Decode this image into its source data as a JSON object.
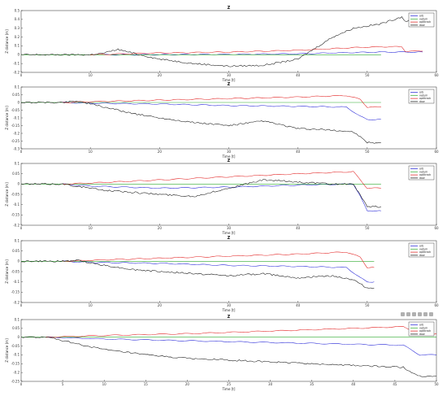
{
  "chart_data": [
    {
      "type": "line",
      "title": "Z",
      "xlabel": "Time [t]",
      "ylabel": "Z distance [m]",
      "xlim": [
        0,
        60
      ],
      "ylim": [
        -0.2,
        0.5
      ],
      "xticks": [
        0,
        10,
        20,
        30,
        40,
        50,
        60
      ],
      "yticks": [
        -0.2,
        -0.1,
        0,
        0.1,
        0.2,
        0.3,
        0.4,
        0.5
      ],
      "grid": false,
      "legend": "top-right",
      "legend_entries": [
        "orb",
        "vatum",
        "optitrack",
        "daw"
      ],
      "colors": [
        "#1f1fd6",
        "#2eaa2e",
        "#e11919",
        "#111111"
      ],
      "series": [
        {
          "name": "orb",
          "x": [
            12,
            20,
            30,
            40,
            45,
            48,
            52,
            55,
            55.5,
            58
          ],
          "y": [
            0,
            0,
            0.005,
            0.01,
            0.02,
            0.025,
            0.03,
            0.03,
            0.03,
            0.03
          ]
        },
        {
          "name": "vatum",
          "x": [
            0,
            52
          ],
          "y": [
            0,
            0
          ]
        },
        {
          "name": "optitrack",
          "x": [
            10,
            20,
            30,
            40,
            48,
            52,
            55,
            55.5,
            58
          ],
          "y": [
            0,
            0.02,
            0.03,
            0.05,
            0.08,
            0.09,
            0.09,
            0.04,
            0.04
          ]
        },
        {
          "name": "daw",
          "x": [
            0,
            10,
            12,
            14,
            16,
            20,
            25,
            30,
            35,
            40,
            45,
            48,
            52,
            55,
            55.5,
            58
          ],
          "y": [
            0,
            0,
            0.02,
            0.06,
            0.02,
            -0.05,
            -0.1,
            -0.13,
            -0.12,
            -0.05,
            0.2,
            0.3,
            0.35,
            0.43,
            0.38,
            0.39
          ]
        }
      ]
    },
    {
      "type": "line",
      "title": "Z",
      "xlabel": "Time [t]",
      "ylabel": "Z distance [m]",
      "xlim": [
        0,
        60
      ],
      "ylim": [
        -0.3,
        0.1
      ],
      "xticks": [
        0,
        10,
        20,
        30,
        40,
        50,
        60
      ],
      "yticks": [
        -0.3,
        -0.25,
        -0.2,
        -0.15,
        -0.1,
        -0.05,
        0,
        0.05,
        0.1
      ],
      "grid": false,
      "legend": "top-right",
      "legend_entries": [
        "orb",
        "vatum",
        "optitrack",
        "daw"
      ],
      "colors": [
        "#1f1fd6",
        "#2eaa2e",
        "#e11919",
        "#111111"
      ],
      "series": [
        {
          "name": "orb",
          "x": [
            6,
            10,
            20,
            30,
            40,
            47,
            49,
            50,
            52
          ],
          "y": [
            0,
            -0.005,
            -0.01,
            -0.02,
            -0.025,
            -0.03,
            -0.09,
            -0.11,
            -0.11
          ]
        },
        {
          "name": "vatum",
          "x": [
            0,
            52
          ],
          "y": [
            0,
            0
          ]
        },
        {
          "name": "optitrack",
          "x": [
            6,
            10,
            20,
            30,
            40,
            47,
            49,
            50,
            52
          ],
          "y": [
            0,
            0.005,
            0.015,
            0.025,
            0.035,
            0.045,
            0.02,
            -0.03,
            -0.03
          ]
        },
        {
          "name": "daw",
          "x": [
            0,
            6,
            8,
            12,
            16,
            20,
            25,
            30,
            35,
            40,
            45,
            48,
            50,
            52
          ],
          "y": [
            0,
            0,
            0.01,
            -0.03,
            -0.07,
            -0.1,
            -0.13,
            -0.15,
            -0.12,
            -0.17,
            -0.18,
            -0.19,
            -0.26,
            -0.26
          ]
        }
      ]
    },
    {
      "type": "line",
      "title": "Z",
      "xlabel": "Time [t]",
      "ylabel": "Z distance [m]",
      "xlim": [
        0,
        60
      ],
      "ylim": [
        -0.2,
        0.1
      ],
      "xticks": [
        0,
        10,
        20,
        30,
        40,
        50,
        60
      ],
      "yticks": [
        -0.2,
        -0.15,
        -0.1,
        -0.05,
        0,
        0.05,
        0.1
      ],
      "grid": false,
      "legend": "top-right",
      "legend_entries": [
        "orb",
        "vatum",
        "optitrack",
        "daw"
      ],
      "colors": [
        "#1f1fd6",
        "#2eaa2e",
        "#e11919",
        "#111111"
      ],
      "series": [
        {
          "name": "orb",
          "x": [
            6,
            10,
            20,
            30,
            40,
            48,
            49,
            50,
            52
          ],
          "y": [
            0,
            -0.01,
            -0.02,
            -0.015,
            -0.005,
            0,
            -0.06,
            -0.13,
            -0.13
          ]
        },
        {
          "name": "vatum",
          "x": [
            0,
            52
          ],
          "y": [
            0,
            0
          ]
        },
        {
          "name": "optitrack",
          "x": [
            6,
            10,
            20,
            30,
            40,
            48,
            49,
            50,
            52
          ],
          "y": [
            0,
            0.005,
            0.02,
            0.035,
            0.05,
            0.06,
            0.02,
            -0.02,
            -0.02
          ]
        },
        {
          "name": "daw",
          "x": [
            0,
            6,
            8,
            12,
            16,
            20,
            25,
            30,
            35,
            40,
            45,
            48,
            50,
            52
          ],
          "y": [
            0,
            0,
            -0.01,
            -0.03,
            -0.04,
            -0.05,
            -0.06,
            -0.02,
            0.02,
            0.01,
            0.0,
            0.0,
            -0.11,
            -0.11
          ]
        }
      ]
    },
    {
      "type": "line",
      "title": "Z",
      "xlabel": "Time [t]",
      "ylabel": "Z distance [m]",
      "xlim": [
        0,
        60
      ],
      "ylim": [
        -0.2,
        0.1
      ],
      "xticks": [
        0,
        10,
        20,
        30,
        40,
        50,
        60
      ],
      "yticks": [
        -0.2,
        -0.15,
        -0.1,
        -0.05,
        0,
        0.05,
        0.1
      ],
      "grid": false,
      "legend": "top-right",
      "legend_entries": [
        "orb",
        "vatum",
        "optitrack",
        "daw"
      ],
      "colors": [
        "#1f1fd6",
        "#2eaa2e",
        "#e11919",
        "#111111"
      ],
      "series": [
        {
          "name": "orb",
          "x": [
            6,
            10,
            20,
            30,
            40,
            47,
            49,
            50,
            51
          ],
          "y": [
            0,
            -0.005,
            -0.01,
            -0.02,
            -0.025,
            -0.03,
            -0.08,
            -0.1,
            -0.1
          ]
        },
        {
          "name": "vatum",
          "x": [
            0,
            51
          ],
          "y": [
            0,
            0
          ]
        },
        {
          "name": "optitrack",
          "x": [
            6,
            10,
            20,
            30,
            40,
            47,
            49,
            50,
            51
          ],
          "y": [
            0,
            0.005,
            0.015,
            0.025,
            0.035,
            0.045,
            0.02,
            -0.03,
            -0.03
          ]
        },
        {
          "name": "daw",
          "x": [
            0,
            6,
            8,
            12,
            16,
            20,
            25,
            30,
            35,
            40,
            45,
            48,
            50,
            51
          ],
          "y": [
            0,
            0,
            0.005,
            -0.02,
            -0.04,
            -0.05,
            -0.06,
            -0.07,
            -0.06,
            -0.08,
            -0.07,
            -0.09,
            -0.13,
            -0.13
          ]
        }
      ]
    },
    {
      "type": "line",
      "title": "Z",
      "xlabel": "Time [t]",
      "ylabel": "Z distance [m]",
      "xlim": [
        0,
        50
      ],
      "ylim": [
        -0.25,
        0.1
      ],
      "xticks": [
        0,
        5,
        10,
        15,
        20,
        25,
        30,
        35,
        40,
        45,
        50
      ],
      "yticks": [
        -0.25,
        -0.2,
        -0.15,
        -0.1,
        -0.05,
        0,
        0.05,
        0.1
      ],
      "grid": false,
      "legend": "top-right",
      "legend_entries": [
        "orb",
        "vatum",
        "optitrack",
        "daw"
      ],
      "colors": [
        "#1f1fd6",
        "#2eaa2e",
        "#e11919",
        "#111111"
      ],
      "series": [
        {
          "name": "orb",
          "x": [
            3,
            10,
            20,
            30,
            40,
            46,
            48,
            50
          ],
          "y": [
            0,
            -0.01,
            -0.02,
            -0.03,
            -0.04,
            -0.045,
            -0.1,
            -0.1
          ]
        },
        {
          "name": "vatum",
          "x": [
            0,
            50
          ],
          "y": [
            0,
            0
          ]
        },
        {
          "name": "optitrack",
          "x": [
            3,
            10,
            20,
            30,
            40,
            46,
            48,
            50
          ],
          "y": [
            0,
            0.01,
            0.02,
            0.035,
            0.05,
            0.06,
            0.02,
            0.02
          ]
        },
        {
          "name": "daw",
          "x": [
            0,
            3,
            6,
            10,
            15,
            20,
            25,
            30,
            35,
            40,
            46,
            47,
            48,
            50
          ],
          "y": [
            0,
            0,
            -0.03,
            -0.07,
            -0.1,
            -0.12,
            -0.13,
            -0.14,
            -0.15,
            -0.16,
            -0.17,
            -0.2,
            -0.22,
            -0.22
          ]
        }
      ]
    }
  ]
}
